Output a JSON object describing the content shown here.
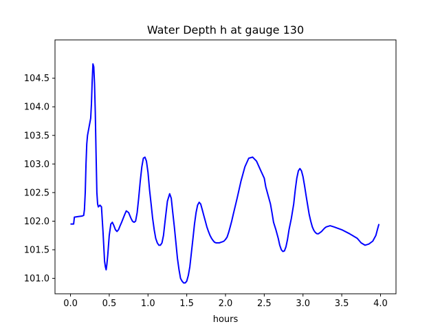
{
  "chart_data": {
    "type": "line",
    "title": "Water Depth h at gauge 130",
    "xlabel": "hours",
    "ylabel": "",
    "xlim": [
      -0.2,
      4.2
    ],
    "ylim": [
      100.73,
      105.17
    ],
    "xticks": [
      0.0,
      0.5,
      1.0,
      1.5,
      2.0,
      2.5,
      3.0,
      3.5,
      4.0
    ],
    "xtick_labels": [
      "0.0",
      "0.5",
      "1.0",
      "1.5",
      "2.0",
      "2.5",
      "3.0",
      "3.5",
      "4.0"
    ],
    "yticks": [
      101.0,
      101.5,
      102.0,
      102.5,
      103.0,
      103.5,
      104.0,
      104.5
    ],
    "ytick_labels": [
      "101.0",
      "101.5",
      "102.0",
      "102.5",
      "103.0",
      "103.5",
      "104.0",
      "104.5"
    ],
    "grid": false,
    "series": [
      {
        "color": "#0000ff",
        "x": [
          0.0,
          0.04,
          0.05,
          0.1,
          0.15,
          0.17,
          0.18,
          0.19,
          0.2,
          0.21,
          0.22,
          0.24,
          0.26,
          0.27,
          0.28,
          0.29,
          0.3,
          0.31,
          0.32,
          0.33,
          0.34,
          0.35,
          0.36,
          0.38,
          0.4,
          0.42,
          0.44,
          0.45,
          0.46,
          0.47,
          0.48,
          0.5,
          0.52,
          0.54,
          0.56,
          0.58,
          0.6,
          0.62,
          0.64,
          0.66,
          0.68,
          0.7,
          0.72,
          0.75,
          0.78,
          0.8,
          0.82,
          0.84,
          0.86,
          0.88,
          0.9,
          0.92,
          0.94,
          0.96,
          0.98,
          1.0,
          1.02,
          1.04,
          1.06,
          1.08,
          1.1,
          1.12,
          1.14,
          1.16,
          1.18,
          1.2,
          1.22,
          1.25,
          1.28,
          1.3,
          1.32,
          1.34,
          1.36,
          1.38,
          1.4,
          1.42,
          1.44,
          1.46,
          1.48,
          1.5,
          1.52,
          1.54,
          1.56,
          1.58,
          1.6,
          1.62,
          1.64,
          1.66,
          1.68,
          1.7,
          1.72,
          1.74,
          1.76,
          1.78,
          1.8,
          1.82,
          1.84,
          1.86,
          1.88,
          1.9,
          1.92,
          1.94,
          1.96,
          1.98,
          2.0,
          2.02,
          2.04,
          2.06,
          2.08,
          2.1,
          2.15,
          2.2,
          2.25,
          2.3,
          2.35,
          2.4,
          2.45,
          2.5,
          2.52,
          2.55,
          2.58,
          2.6,
          2.62,
          2.65,
          2.68,
          2.7,
          2.72,
          2.74,
          2.76,
          2.78,
          2.8,
          2.82,
          2.85,
          2.88,
          2.9,
          2.92,
          2.94,
          2.96,
          2.98,
          3.0,
          3.02,
          3.04,
          3.06,
          3.08,
          3.1,
          3.12,
          3.14,
          3.16,
          3.18,
          3.2,
          3.22,
          3.24,
          3.26,
          3.28,
          3.3,
          3.35,
          3.4,
          3.5,
          3.6,
          3.7,
          3.75,
          3.8,
          3.85,
          3.9,
          3.94,
          3.96,
          3.98
        ],
        "y": [
          101.95,
          101.95,
          102.07,
          102.08,
          102.09,
          102.1,
          102.2,
          102.5,
          103.0,
          103.35,
          103.5,
          103.65,
          103.8,
          104.05,
          104.45,
          104.75,
          104.7,
          104.4,
          103.9,
          103.2,
          102.5,
          102.3,
          102.25,
          102.28,
          102.25,
          101.8,
          101.3,
          101.2,
          101.15,
          101.25,
          101.4,
          101.75,
          101.95,
          101.98,
          101.92,
          101.85,
          101.82,
          101.85,
          101.92,
          101.98,
          102.05,
          102.12,
          102.18,
          102.15,
          102.05,
          102.0,
          101.98,
          102.0,
          102.15,
          102.4,
          102.7,
          102.95,
          103.1,
          103.12,
          103.05,
          102.85,
          102.55,
          102.3,
          102.05,
          101.85,
          101.7,
          101.62,
          101.58,
          101.58,
          101.62,
          101.75,
          102.0,
          102.35,
          102.48,
          102.4,
          102.15,
          101.9,
          101.62,
          101.35,
          101.15,
          101.0,
          100.95,
          100.92,
          100.92,
          100.95,
          101.05,
          101.2,
          101.45,
          101.7,
          101.95,
          102.15,
          102.28,
          102.33,
          102.3,
          102.2,
          102.1,
          102.0,
          101.9,
          101.82,
          101.75,
          101.7,
          101.66,
          101.63,
          101.62,
          101.62,
          101.62,
          101.63,
          101.64,
          101.65,
          101.68,
          101.72,
          101.8,
          101.9,
          102.0,
          102.12,
          102.4,
          102.7,
          102.95,
          103.1,
          103.12,
          103.05,
          102.9,
          102.75,
          102.6,
          102.45,
          102.3,
          102.15,
          101.98,
          101.85,
          101.7,
          101.58,
          101.5,
          101.47,
          101.48,
          101.55,
          101.68,
          101.85,
          102.05,
          102.3,
          102.55,
          102.75,
          102.88,
          102.92,
          102.88,
          102.78,
          102.62,
          102.45,
          102.28,
          102.12,
          102.0,
          101.9,
          101.84,
          101.8,
          101.78,
          101.78,
          101.8,
          101.82,
          101.85,
          101.88,
          101.9,
          101.92,
          101.9,
          101.85,
          101.78,
          101.7,
          101.62,
          101.58,
          101.6,
          101.65,
          101.75,
          101.85,
          101.95
        ]
      }
    ]
  }
}
